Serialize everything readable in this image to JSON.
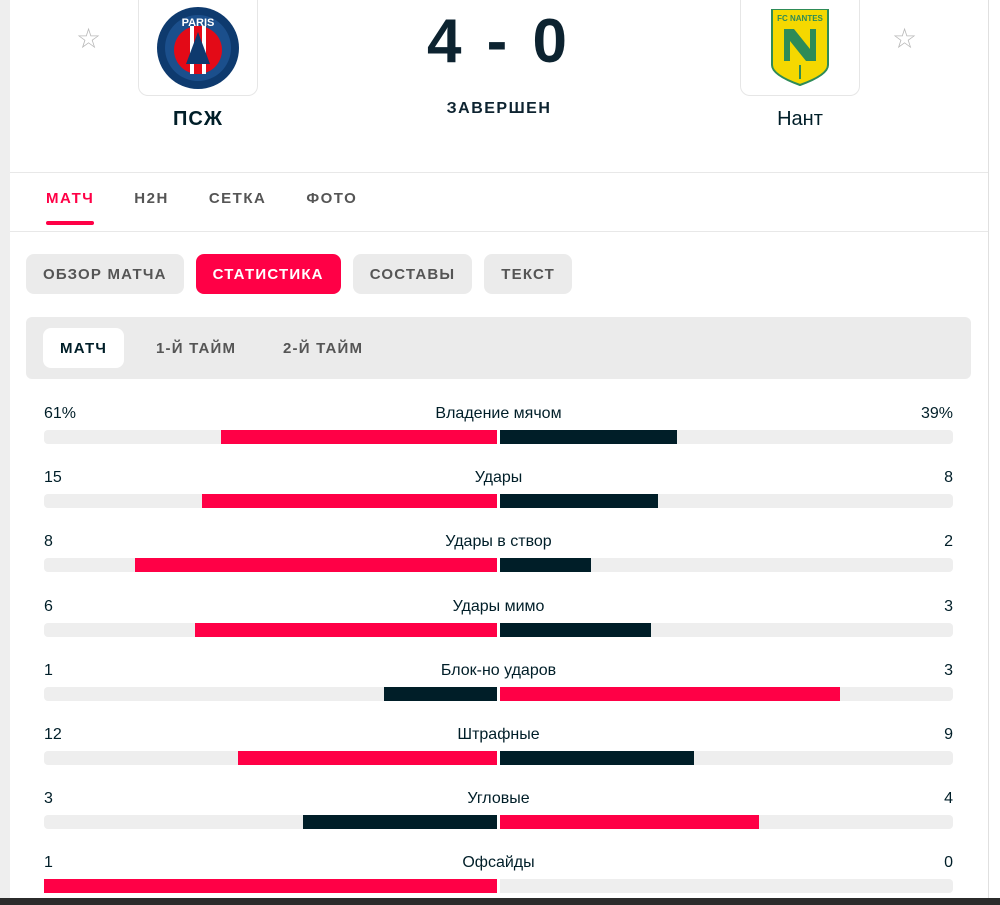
{
  "match": {
    "home": {
      "name": "ПСЖ",
      "logo_text": "PARIS"
    },
    "away": {
      "name": "Нант",
      "logo_text": "FC NANTES"
    },
    "score": "4 - 0",
    "status": "ЗАВЕРШЕН",
    "star_icon": "☆"
  },
  "tabs": [
    {
      "label": "МАТЧ",
      "active": true
    },
    {
      "label": "H2H",
      "active": false
    },
    {
      "label": "СЕТКА",
      "active": false
    },
    {
      "label": "ФОТО",
      "active": false
    }
  ],
  "subtabs": [
    {
      "label": "ОБЗОР МАТЧА",
      "active": false
    },
    {
      "label": "СТАТИСТИКА",
      "active": true
    },
    {
      "label": "СОСТАВЫ",
      "active": false
    },
    {
      "label": "ТЕКСТ",
      "active": false
    }
  ],
  "periods": [
    {
      "label": "МАТЧ",
      "active": true
    },
    {
      "label": "1-Й ТАЙМ",
      "active": false
    },
    {
      "label": "2-Й ТАЙМ",
      "active": false
    }
  ],
  "colors": {
    "accent": "#ff0046",
    "dark": "#001e28",
    "track": "#eeeeee"
  },
  "stats": [
    {
      "label": "Владение мячом",
      "home": "61%",
      "away": "39%",
      "home_num": 61,
      "away_num": 39
    },
    {
      "label": "Удары",
      "home": "15",
      "away": "8",
      "home_num": 15,
      "away_num": 8
    },
    {
      "label": "Удары в створ",
      "home": "8",
      "away": "2",
      "home_num": 8,
      "away_num": 2
    },
    {
      "label": "Удары мимо",
      "home": "6",
      "away": "3",
      "home_num": 6,
      "away_num": 3
    },
    {
      "label": "Блок-но ударов",
      "home": "1",
      "away": "3",
      "home_num": 1,
      "away_num": 3
    },
    {
      "label": "Штрафные",
      "home": "12",
      "away": "9",
      "home_num": 12,
      "away_num": 9
    },
    {
      "label": "Угловые",
      "home": "3",
      "away": "4",
      "home_num": 3,
      "away_num": 4
    },
    {
      "label": "Офсайды",
      "home": "1",
      "away": "0",
      "home_num": 1,
      "away_num": 0
    }
  ]
}
